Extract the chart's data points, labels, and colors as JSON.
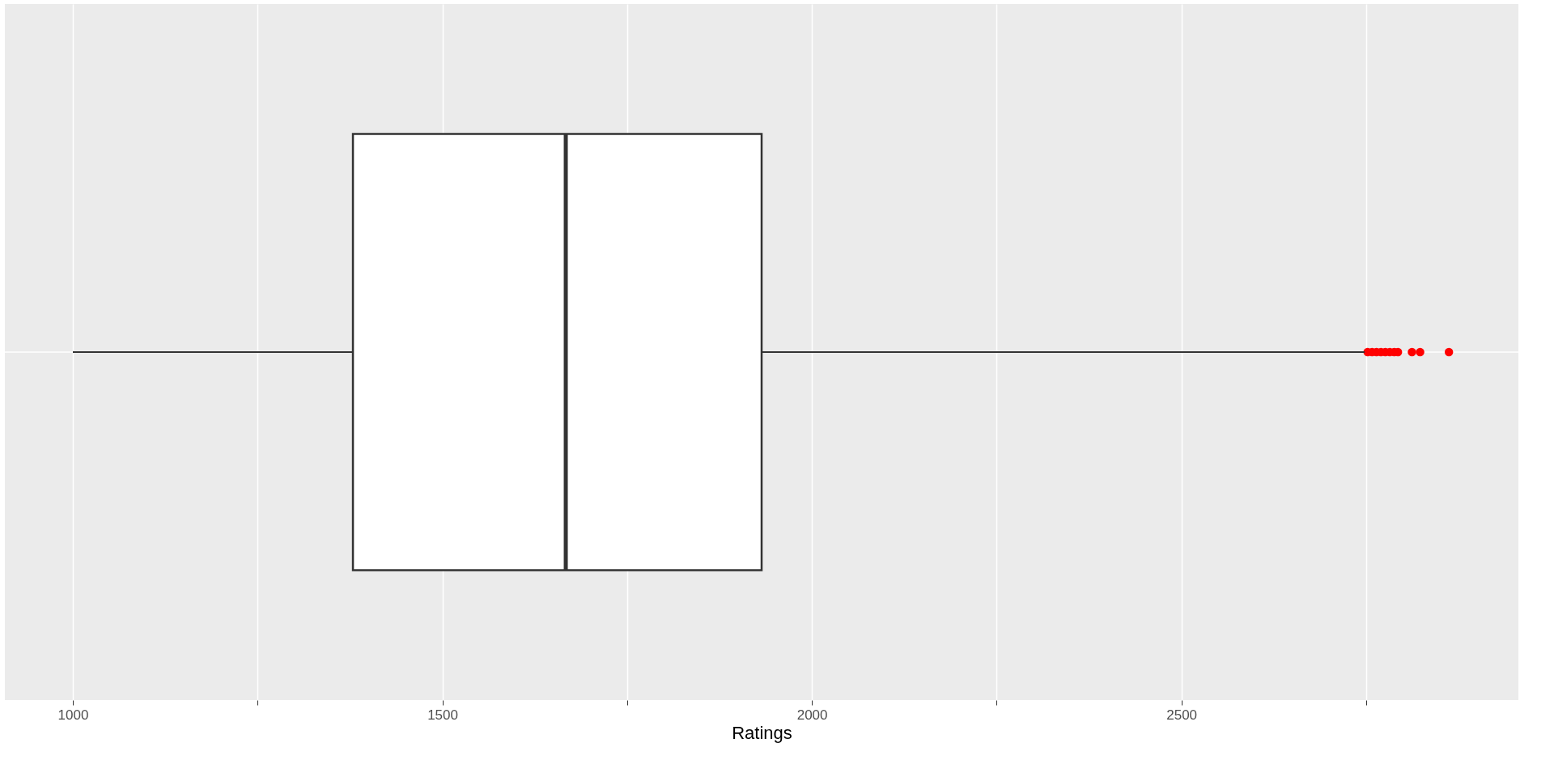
{
  "chart_data": {
    "type": "box",
    "orientation": "horizontal",
    "xlabel": "Ratings",
    "categories": [
      null
    ],
    "boxes": [
      {
        "low": 1000,
        "q1": 1379,
        "median": 1667,
        "q3": 1932,
        "high": 2748,
        "outliers": [
          2752,
          2758,
          2764,
          2770,
          2776,
          2782,
          2788,
          2793,
          2812,
          2823,
          2862
        ]
      }
    ],
    "color": "#ffffff",
    "xlim": [
      908,
      2956
    ],
    "xticks": [
      1000,
      {
        "value": 1250,
        "label": null
      },
      1500,
      {
        "value": 1750,
        "label": null
      },
      2000,
      {
        "value": 2250,
        "label": null
      },
      2500,
      {
        "value": 2750,
        "label": null
      }
    ],
    "grid": true,
    "legend": false
  }
}
